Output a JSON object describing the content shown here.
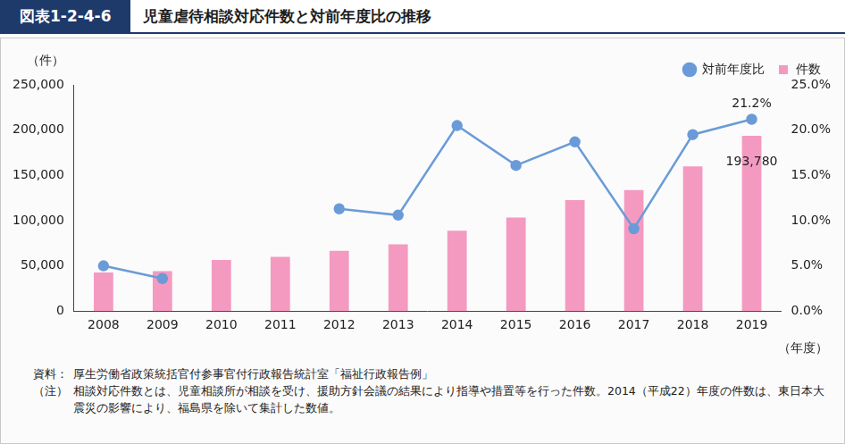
{
  "header": {
    "label": "図表1-2-4-6",
    "title": "児童虐待相談対応件数と対前年度比の推移"
  },
  "chart_data": {
    "type": "bar",
    "y_label": "（件）",
    "x_label": "（年度）",
    "categories": [
      "2008",
      "2009",
      "2010",
      "2011",
      "2012",
      "2013",
      "2014",
      "2015",
      "2016",
      "2017",
      "2018",
      "2019"
    ],
    "series": [
      {
        "name": "件数",
        "type": "bar",
        "color": "#f49ac1",
        "values": [
          42664,
          44211,
          56384,
          59919,
          66701,
          73802,
          88931,
          103286,
          122575,
          133778,
          159838,
          193780
        ],
        "value_labels": [
          null,
          null,
          null,
          null,
          null,
          null,
          null,
          null,
          null,
          null,
          null,
          "193,780"
        ]
      },
      {
        "name": "対前年度比",
        "type": "line",
        "axis": "y2",
        "color": "#6a9bd8",
        "marker": "circle",
        "values": [
          5.0,
          3.6,
          null,
          null,
          11.3,
          10.6,
          20.5,
          16.1,
          18.7,
          9.1,
          19.5,
          21.2
        ],
        "value_labels": [
          null,
          null,
          null,
          null,
          null,
          null,
          null,
          null,
          null,
          null,
          null,
          "21.2%"
        ]
      }
    ],
    "ylim": [
      0,
      250000
    ],
    "yticks": [
      0,
      {
        "value": 50000,
        "label": "50,000"
      },
      {
        "value": 100000,
        "label": "100,000"
      },
      {
        "value": 150000,
        "label": "150,000"
      },
      {
        "value": 200000,
        "label": "200,000"
      },
      {
        "value": 250000,
        "label": "250,000"
      }
    ],
    "y2lim": [
      0,
      25
    ],
    "y2ticks": [
      {
        "value": 0,
        "label": "0.0%"
      },
      {
        "value": 5,
        "label": "5.0%"
      },
      {
        "value": 10,
        "label": "10.0%"
      },
      {
        "value": 15,
        "label": "15.0%"
      },
      {
        "value": 20,
        "label": "20.0%"
      },
      {
        "value": 25,
        "label": "25.0%"
      }
    ],
    "legend": "upper right",
    "grid": false
  },
  "notes": [
    {
      "label": "資料：",
      "text": "厚生労働省政策統括官付参事官付行政報告統計室「福祉行政報告例」"
    },
    {
      "label": "（注）",
      "text": "相談対応件数とは、児童相談所が相談を受け、援助方針会議の結果により指導や措置等を行った件数。2014（平成22）年度の件数は、東日本大震災の影響により、福島県を除いて集計した数値。"
    }
  ]
}
